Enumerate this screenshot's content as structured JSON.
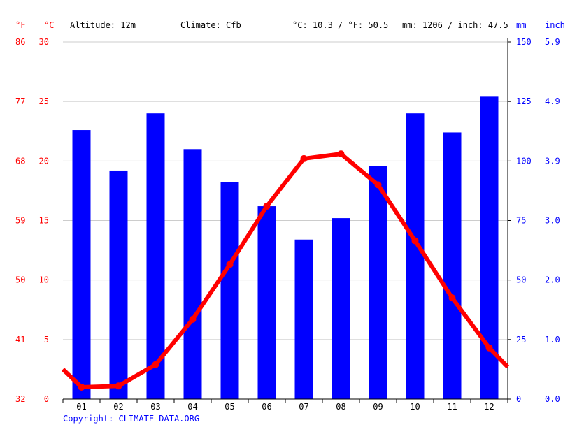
{
  "header": {
    "unit_f": "°F",
    "unit_c": "°C",
    "altitude": "Altitude: 12m",
    "climate": "Climate: Cfb",
    "avg_temp": "°C: 10.3 / °F: 50.5",
    "avg_precip": "mm: 1206 / inch: 47.5",
    "unit_mm": "mm",
    "unit_inch": "inch"
  },
  "copyright": "Copyright: CLIMATE-DATA.ORG",
  "colors": {
    "temperature": "#ff0000",
    "precipitation": "#0000ff",
    "grid": "#cccccc"
  },
  "chart_data": {
    "type": "bar+line",
    "categories": [
      "01",
      "02",
      "03",
      "04",
      "05",
      "06",
      "07",
      "08",
      "09",
      "10",
      "11",
      "12"
    ],
    "series": [
      {
        "type": "bar",
        "unit": "mm",
        "axis": "right",
        "values": [
          113,
          96,
          120,
          105,
          91,
          81,
          67,
          76,
          98,
          120,
          112,
          127
        ]
      },
      {
        "type": "line",
        "unit": "°C",
        "axis": "left",
        "values": [
          1.0,
          1.1,
          2.9,
          6.7,
          11.3,
          16.2,
          20.2,
          20.6,
          18.0,
          13.3,
          8.5,
          4.3
        ]
      }
    ],
    "temp_line_start": 2.5,
    "temp_line_end": 2.7,
    "ylim_c": [
      0,
      30
    ],
    "ylim_mm": [
      0,
      150
    ],
    "ticks_c": [
      "0",
      "5",
      "10",
      "15",
      "20",
      "25",
      "30"
    ],
    "ticks_f": [
      "32",
      "41",
      "50",
      "59",
      "68",
      "77",
      "86"
    ],
    "ticks_mm": [
      "0",
      "25",
      "50",
      "75",
      "100",
      "125",
      "150"
    ],
    "ticks_inch": [
      "0.0",
      "1.0",
      "2.0",
      "3.0",
      "3.9",
      "4.9",
      "5.9"
    ],
    "grid": true
  }
}
